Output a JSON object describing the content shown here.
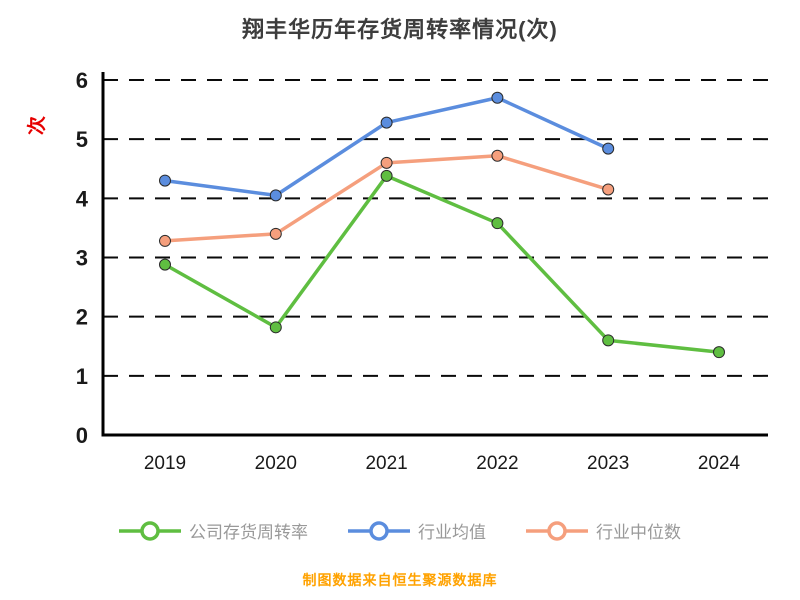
{
  "title": "翔丰华历年存货周转率情况(次)",
  "ylabel": "次",
  "footer": "制图数据来自恒生聚源数据库",
  "colors": {
    "title_text": "#3d3d3d",
    "unit_label": "#e60000",
    "footer_text": "#ffa200",
    "legend_text": "#999999",
    "axis": "#000000",
    "gridline": "#0a0a0a"
  },
  "chart_data": {
    "type": "line",
    "title": "翔丰华历年存货周转率情况(次)",
    "xlabel": "",
    "ylabel": "次",
    "categories": [
      "2019",
      "2020",
      "2021",
      "2022",
      "2023",
      "2024"
    ],
    "series": [
      {
        "id": "company-inventory-turnover",
        "name": "公司存货周转率",
        "color": "#5fbe41",
        "values": [
          2.88,
          1.82,
          4.38,
          3.58,
          1.6,
          1.4
        ]
      },
      {
        "id": "industry-average",
        "name": "行业均值",
        "color": "#5b8dde",
        "values": [
          4.3,
          4.05,
          5.28,
          5.7,
          4.84,
          null
        ]
      },
      {
        "id": "industry-median",
        "name": "行业中位数",
        "color": "#f59f7d",
        "values": [
          3.28,
          3.4,
          4.6,
          4.72,
          4.15,
          null
        ]
      }
    ],
    "ylim": [
      0,
      6
    ],
    "yticks": [
      0,
      1,
      2,
      3,
      4,
      5,
      6
    ],
    "grid": true,
    "grid_style": "dashed",
    "legend_position": "bottom",
    "source_note": "制图数据来自恒生聚源数据库"
  }
}
